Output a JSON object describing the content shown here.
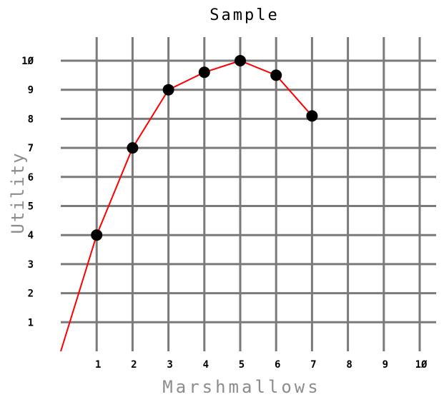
{
  "chart_data": {
    "type": "line",
    "title": "Sample",
    "xlabel": "Marshmallows",
    "ylabel": "Utility",
    "xlim": [
      0,
      10
    ],
    "ylim": [
      0,
      10
    ],
    "x_ticks": [
      "1",
      "2",
      "3",
      "4",
      "5",
      "6",
      "7",
      "8",
      "9",
      "1Ø"
    ],
    "y_ticks": [
      "1",
      "2",
      "3",
      "4",
      "5",
      "6",
      "7",
      "8",
      "9",
      "1Ø"
    ],
    "grid": true,
    "line_color": "#ff0000",
    "marker_color": "#000000",
    "series": [
      {
        "x": [
          0,
          1,
          2,
          3,
          4,
          5,
          6,
          7
        ],
        "y": [
          0,
          4,
          7,
          9,
          9.6,
          10,
          9.5,
          8.1
        ],
        "markers": [
          false,
          true,
          true,
          true,
          true,
          true,
          true,
          true
        ]
      }
    ]
  }
}
